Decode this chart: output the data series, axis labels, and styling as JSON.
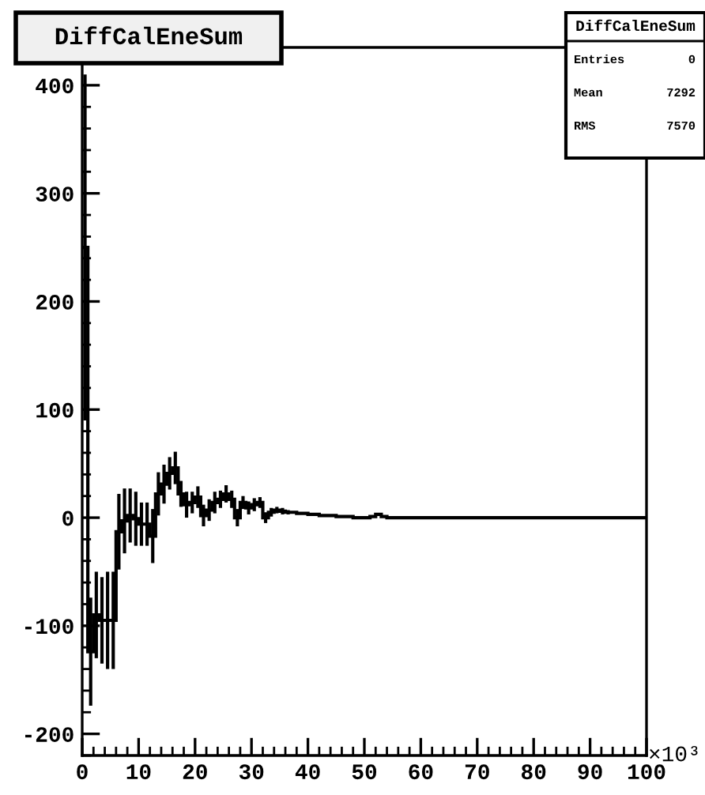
{
  "chart_data": {
    "type": "histogram",
    "title": "DiffCalEneSum",
    "bins": [
      0,
      1,
      2,
      3,
      4,
      5,
      6,
      7,
      8,
      9,
      10,
      11,
      12,
      13,
      14,
      15,
      16,
      17,
      18,
      19,
      20,
      21,
      22,
      23,
      24,
      25,
      26,
      27,
      28,
      29,
      30,
      31,
      32,
      33,
      34,
      35,
      36,
      37,
      38,
      39,
      40,
      41,
      42,
      43,
      44,
      45,
      46,
      47,
      48,
      49,
      50,
      51,
      52,
      53,
      54,
      55,
      56,
      57,
      58,
      59,
      60,
      61,
      62,
      63,
      64,
      65,
      66,
      67,
      68,
      69,
      70,
      71,
      72,
      73,
      74,
      75,
      76,
      77,
      78,
      79,
      80,
      81,
      82,
      83,
      84,
      85,
      86,
      87,
      88,
      89,
      90,
      91,
      92,
      93,
      94,
      95,
      96,
      97,
      98,
      99,
      100
    ],
    "values": [
      250,
      -124,
      -90,
      -95,
      -95,
      -95,
      -13,
      -3,
      2,
      -1,
      -6,
      -6,
      -17,
      22,
      31,
      41,
      46,
      22,
      12,
      14,
      19,
      2,
      7,
      14,
      17,
      22,
      17,
      0,
      14,
      9,
      12,
      14,
      0,
      5,
      7,
      6,
      5,
      5,
      4,
      4,
      3,
      3,
      2,
      2,
      2,
      1,
      1,
      1,
      0,
      0,
      0,
      1,
      3,
      1,
      0,
      0,
      0,
      0,
      0,
      0,
      0,
      0,
      0,
      0,
      0,
      0,
      0,
      0,
      0,
      0,
      0,
      0,
      0,
      0,
      0,
      0,
      0,
      0,
      0,
      0,
      0,
      0,
      0,
      0,
      0,
      0,
      0,
      0,
      0,
      0,
      0,
      0,
      0,
      0,
      0,
      0,
      0,
      0,
      0,
      0
    ],
    "errors": [
      160,
      50,
      40,
      40,
      45,
      45,
      35,
      30,
      25,
      25,
      20,
      20,
      25,
      20,
      18,
      15,
      15,
      12,
      12,
      10,
      10,
      10,
      10,
      10,
      8,
      8,
      8,
      8,
      6,
      6,
      6,
      5,
      5,
      4,
      3,
      3,
      2,
      null,
      null,
      null,
      null,
      null,
      null,
      null,
      null,
      null,
      null,
      null,
      null,
      null,
      null,
      null,
      null,
      null,
      null,
      null,
      null,
      null,
      null,
      null,
      null,
      null,
      null,
      null,
      null,
      null,
      null,
      null,
      null,
      null,
      null,
      null,
      null,
      null,
      null,
      null,
      null,
      null,
      null,
      null,
      null,
      null,
      null,
      null,
      null,
      null,
      null,
      null,
      null,
      null,
      null,
      null,
      null,
      null,
      null,
      null,
      null,
      null,
      null,
      null
    ],
    "color": "#000000",
    "xlim": [
      0,
      100
    ],
    "xticks": [
      0,
      10,
      20,
      30,
      40,
      50,
      60,
      70,
      80,
      90,
      100
    ],
    "ylim": [
      -220,
      435
    ],
    "yticks": [
      -200,
      -100,
      0,
      100,
      200,
      300,
      400
    ],
    "annotations": [
      "×10³",
      "DiffCalEneSum",
      "Entries",
      "0",
      "Mean",
      "7292",
      "RMS",
      "7570"
    ],
    "grid": false
  }
}
